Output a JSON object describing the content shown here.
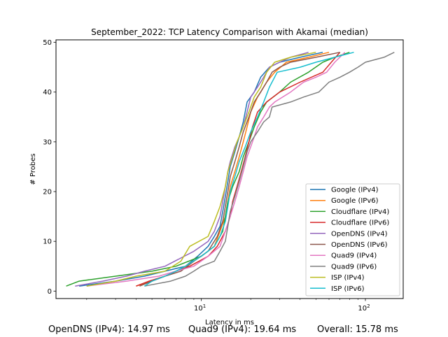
{
  "chart_data": {
    "type": "line",
    "title": "September_2022: TCP Latency Comparison with Akamai (median)",
    "xlabel": "Latency in ms",
    "ylabel": "# Probes",
    "xscale": "log",
    "xlim": [
      1.3,
      170
    ],
    "ylim": [
      -1.5,
      50.5
    ],
    "xticks": [
      {
        "value": 10,
        "label": "10^1"
      },
      {
        "value": 100,
        "label": "10^2"
      }
    ],
    "yticks": [
      0,
      10,
      20,
      30,
      40,
      50
    ],
    "legend": "lower-right",
    "series": [
      {
        "name": "Google (IPv4)",
        "color": "#1f77b4",
        "points": [
          [
            1.8,
            1
          ],
          [
            3,
            2
          ],
          [
            4.5,
            3
          ],
          [
            6,
            4
          ],
          [
            8,
            5
          ],
          [
            9.5,
            7
          ],
          [
            11,
            9
          ],
          [
            12,
            11
          ],
          [
            13,
            13
          ],
          [
            13.5,
            16
          ],
          [
            14,
            19
          ],
          [
            14.5,
            22
          ],
          [
            15,
            25
          ],
          [
            16,
            28
          ],
          [
            17,
            31
          ],
          [
            18,
            34
          ],
          [
            19,
            38
          ],
          [
            21,
            40
          ],
          [
            23,
            43
          ],
          [
            26,
            45
          ],
          [
            30,
            46
          ],
          [
            40,
            47
          ],
          [
            55,
            48
          ]
        ]
      },
      {
        "name": "Google (IPv6)",
        "color": "#ff7f0e",
        "points": [
          [
            4,
            1
          ],
          [
            5,
            2
          ],
          [
            6,
            3
          ],
          [
            7,
            4
          ],
          [
            8,
            5
          ],
          [
            10,
            7
          ],
          [
            12,
            9
          ],
          [
            13,
            12
          ],
          [
            14,
            15
          ],
          [
            14.5,
            18
          ],
          [
            15,
            21
          ],
          [
            16,
            24
          ],
          [
            17,
            27
          ],
          [
            18,
            30
          ],
          [
            19,
            33
          ],
          [
            20,
            36
          ],
          [
            22,
            39
          ],
          [
            25,
            42
          ],
          [
            28,
            44
          ],
          [
            33,
            46
          ],
          [
            45,
            47
          ],
          [
            60,
            48
          ]
        ]
      },
      {
        "name": "Cloudflare (IPv4)",
        "color": "#2ca02c",
        "points": [
          [
            1.5,
            1
          ],
          [
            1.8,
            2
          ],
          [
            3,
            3
          ],
          [
            5,
            4
          ],
          [
            7,
            5
          ],
          [
            10,
            7
          ],
          [
            12,
            9
          ],
          [
            13.5,
            12
          ],
          [
            14,
            15
          ],
          [
            14.5,
            18
          ],
          [
            15.5,
            21
          ],
          [
            17,
            24
          ],
          [
            18,
            27
          ],
          [
            19.5,
            30
          ],
          [
            21,
            33
          ],
          [
            23,
            36
          ],
          [
            25,
            38
          ],
          [
            30,
            40
          ],
          [
            35,
            42
          ],
          [
            45,
            44
          ],
          [
            55,
            46
          ],
          [
            65,
            47
          ],
          [
            80,
            48
          ]
        ]
      },
      {
        "name": "Cloudflare (IPv6)",
        "color": "#d62728",
        "points": [
          [
            4,
            1
          ],
          [
            4.8,
            2
          ],
          [
            6,
            3
          ],
          [
            7,
            4
          ],
          [
            8.5,
            5
          ],
          [
            11,
            7
          ],
          [
            12.5,
            9
          ],
          [
            14,
            12
          ],
          [
            15,
            15
          ],
          [
            15.5,
            18
          ],
          [
            16.5,
            21
          ],
          [
            17.5,
            24
          ],
          [
            18.5,
            27
          ],
          [
            19.5,
            30
          ],
          [
            20.5,
            33
          ],
          [
            22,
            36
          ],
          [
            25,
            38
          ],
          [
            30,
            40
          ],
          [
            40,
            42
          ],
          [
            55,
            44
          ],
          [
            62,
            46
          ],
          [
            70,
            48
          ]
        ]
      },
      {
        "name": "OpenDNS (IPv4)",
        "color": "#9467bd",
        "points": [
          [
            1.7,
            1
          ],
          [
            2.5,
            2
          ],
          [
            3.5,
            3
          ],
          [
            4.5,
            4
          ],
          [
            6,
            5
          ],
          [
            9,
            8
          ],
          [
            11,
            10
          ],
          [
            12,
            12
          ],
          [
            13,
            15
          ],
          [
            13.5,
            18
          ],
          [
            14,
            21
          ],
          [
            14.5,
            24
          ],
          [
            15,
            26
          ],
          [
            16,
            29
          ],
          [
            17,
            31
          ],
          [
            18,
            33
          ],
          [
            19,
            36
          ],
          [
            20,
            39
          ],
          [
            22,
            41
          ],
          [
            24,
            43
          ],
          [
            26,
            45
          ],
          [
            30,
            46
          ],
          [
            35,
            47
          ],
          [
            45,
            48
          ]
        ]
      },
      {
        "name": "OpenDNS (IPv6)",
        "color": "#8c564b",
        "points": [
          [
            4.2,
            1
          ],
          [
            5,
            2
          ],
          [
            6,
            3
          ],
          [
            7.5,
            4
          ],
          [
            9,
            6
          ],
          [
            11,
            8
          ],
          [
            12.5,
            11
          ],
          [
            13.5,
            14
          ],
          [
            14,
            17
          ],
          [
            14.5,
            20
          ],
          [
            15,
            23
          ],
          [
            16,
            26
          ],
          [
            17,
            29
          ],
          [
            18,
            32
          ],
          [
            19.5,
            35
          ],
          [
            21,
            38
          ],
          [
            23,
            40
          ],
          [
            25,
            42
          ],
          [
            27,
            44
          ],
          [
            30,
            45
          ],
          [
            35,
            46
          ],
          [
            50,
            47
          ],
          [
            70,
            48
          ]
        ]
      },
      {
        "name": "Quad9 (IPv4)",
        "color": "#e377c2",
        "points": [
          [
            2,
            1
          ],
          [
            3.5,
            2
          ],
          [
            5.5,
            3
          ],
          [
            7,
            4
          ],
          [
            9,
            5
          ],
          [
            11,
            7
          ],
          [
            13,
            9
          ],
          [
            14,
            12
          ],
          [
            15,
            15
          ],
          [
            16,
            18
          ],
          [
            17,
            21
          ],
          [
            18,
            24
          ],
          [
            19,
            27
          ],
          [
            20,
            29
          ],
          [
            21,
            31
          ],
          [
            22,
            33
          ],
          [
            24,
            35
          ],
          [
            26,
            37
          ],
          [
            28,
            38
          ],
          [
            35,
            40
          ],
          [
            42,
            42
          ],
          [
            50,
            43
          ],
          [
            58,
            44
          ],
          [
            65,
            46
          ],
          [
            75,
            48
          ]
        ]
      },
      {
        "name": "Quad9 (IPv6)",
        "color": "#7f7f7f",
        "points": [
          [
            4.5,
            1
          ],
          [
            6.5,
            2
          ],
          [
            8,
            3
          ],
          [
            9,
            4
          ],
          [
            10,
            5
          ],
          [
            12,
            6
          ],
          [
            13,
            8
          ],
          [
            14,
            10
          ],
          [
            14.5,
            13
          ],
          [
            15,
            16
          ],
          [
            16,
            19
          ],
          [
            17,
            22
          ],
          [
            18,
            25
          ],
          [
            19,
            28
          ],
          [
            20,
            30
          ],
          [
            22,
            32
          ],
          [
            24,
            34
          ],
          [
            26,
            35
          ],
          [
            27,
            37
          ],
          [
            35,
            38
          ],
          [
            42,
            39
          ],
          [
            52,
            40
          ],
          [
            60,
            42
          ],
          [
            70,
            43
          ],
          [
            80,
            44
          ],
          [
            90,
            45
          ],
          [
            100,
            46
          ],
          [
            130,
            47
          ],
          [
            150,
            48
          ]
        ]
      },
      {
        "name": "ISP (IPv4)",
        "color": "#bcbd22",
        "points": [
          [
            2,
            1
          ],
          [
            3,
            2
          ],
          [
            4,
            3
          ],
          [
            6,
            4
          ],
          [
            7.5,
            6
          ],
          [
            8.5,
            9
          ],
          [
            11,
            11
          ],
          [
            12,
            14
          ],
          [
            13,
            17
          ],
          [
            14,
            21
          ],
          [
            14.5,
            24
          ],
          [
            15.5,
            27
          ],
          [
            16.5,
            30
          ],
          [
            18,
            33
          ],
          [
            19.5,
            36
          ],
          [
            21,
            39
          ],
          [
            23,
            41
          ],
          [
            25,
            44
          ],
          [
            28,
            46
          ],
          [
            35,
            47
          ],
          [
            50,
            48
          ]
        ]
      },
      {
        "name": "ISP (IPv6)",
        "color": "#17becf",
        "points": [
          [
            4.5,
            1
          ],
          [
            5,
            2
          ],
          [
            6,
            3
          ],
          [
            7,
            4
          ],
          [
            8,
            5
          ],
          [
            10,
            7
          ],
          [
            12,
            9
          ],
          [
            13,
            11
          ],
          [
            14,
            14
          ],
          [
            14.5,
            17
          ],
          [
            15,
            20
          ],
          [
            16,
            23
          ],
          [
            17,
            26
          ],
          [
            18.5,
            29
          ],
          [
            20,
            32
          ],
          [
            22,
            35
          ],
          [
            24,
            38
          ],
          [
            26,
            41
          ],
          [
            29,
            44
          ],
          [
            40,
            45
          ],
          [
            50,
            46
          ],
          [
            65,
            47
          ],
          [
            85,
            48
          ]
        ]
      }
    ]
  },
  "footer": {
    "opendns": "OpenDNS (IPv4): 14.97 ms",
    "quad9": "Quad9 (IPv4): 19.64 ms",
    "overall": "Overall: 15.78 ms"
  }
}
